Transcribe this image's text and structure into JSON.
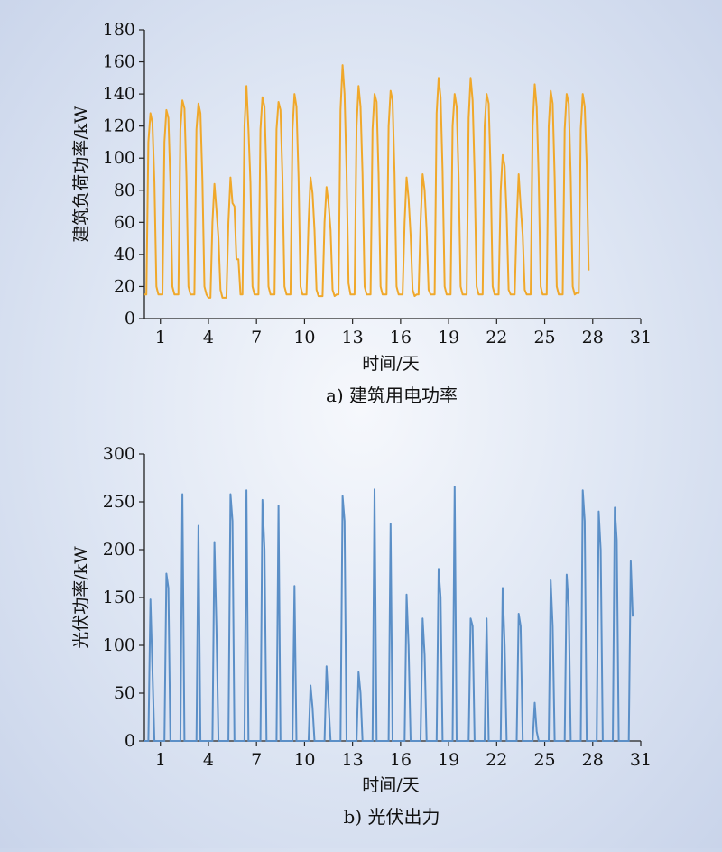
{
  "chart_data": [
    {
      "type": "line",
      "caption": "a) 建筑用电功率",
      "xlabel": "时间/天",
      "ylabel": "建筑负荷功率/kW",
      "xlim": [
        0,
        31
      ],
      "ylim": [
        0,
        180
      ],
      "xticks": [
        1,
        4,
        7,
        10,
        13,
        16,
        19,
        22,
        25,
        28,
        31
      ],
      "yticks": [
        0,
        20,
        40,
        60,
        80,
        100,
        120,
        140,
        160,
        180
      ],
      "color": "#f0a82a",
      "series": [
        {
          "x_start_day": 0,
          "points_per_day": 8,
          "values": [
            15,
            15,
            110,
            128,
            122,
            85,
            20,
            15,
            15,
            15,
            110,
            130,
            125,
            85,
            20,
            15,
            15,
            15,
            118,
            136,
            131,
            88,
            20,
            15,
            15,
            15,
            118,
            134,
            128,
            86,
            20,
            15,
            13,
            13,
            60,
            84,
            68,
            50,
            18,
            13,
            13,
            13,
            60,
            88,
            72,
            70,
            37,
            37,
            15,
            15,
            120,
            145,
            118,
            85,
            20,
            15,
            15,
            15,
            118,
            138,
            132,
            88,
            20,
            15,
            15,
            15,
            118,
            135,
            130,
            88,
            20,
            15,
            15,
            15,
            118,
            140,
            132,
            88,
            20,
            15,
            15,
            15,
            60,
            88,
            78,
            55,
            18,
            14,
            14,
            14,
            60,
            82,
            72,
            55,
            18,
            14,
            15,
            15,
            130,
            158,
            140,
            92,
            22,
            15,
            15,
            15,
            120,
            145,
            132,
            90,
            20,
            15,
            15,
            15,
            118,
            140,
            135,
            90,
            20,
            15,
            15,
            15,
            120,
            142,
            136,
            90,
            20,
            15,
            15,
            15,
            60,
            88,
            75,
            52,
            18,
            14,
            15,
            15,
            60,
            90,
            80,
            55,
            18,
            15,
            15,
            15,
            128,
            150,
            138,
            92,
            20,
            15,
            15,
            15,
            120,
            140,
            132,
            88,
            20,
            15,
            15,
            15,
            125,
            150,
            136,
            90,
            20,
            15,
            15,
            15,
            120,
            140,
            134,
            90,
            20,
            15,
            15,
            15,
            80,
            102,
            95,
            65,
            18,
            15,
            15,
            15,
            60,
            90,
            70,
            52,
            18,
            15,
            15,
            15,
            120,
            146,
            132,
            88,
            20,
            15,
            15,
            15,
            120,
            142,
            134,
            88,
            20,
            15,
            15,
            15,
            118,
            140,
            134,
            88,
            20,
            15,
            16,
            16,
            118,
            140,
            132,
            96,
            30
          ]
        }
      ]
    },
    {
      "type": "line",
      "caption": "b) 光伏出力",
      "xlabel": "时间/天",
      "ylabel": "光伏功率/kW",
      "xlim": [
        0,
        31
      ],
      "ylim": [
        0,
        300
      ],
      "xticks": [
        1,
        4,
        7,
        10,
        13,
        16,
        19,
        22,
        25,
        28,
        31
      ],
      "yticks": [
        0,
        50,
        100,
        150,
        200,
        250,
        300
      ],
      "color": "#5b8fc7",
      "series": [
        {
          "x_start_day": 0,
          "points_per_day": 8,
          "values": [
            0,
            0,
            0,
            148,
            75,
            0,
            0,
            0,
            0,
            0,
            0,
            175,
            160,
            0,
            0,
            0,
            0,
            0,
            0,
            258,
            0,
            0,
            0,
            0,
            0,
            0,
            0,
            225,
            0,
            0,
            0,
            0,
            0,
            0,
            0,
            208,
            120,
            0,
            0,
            0,
            0,
            0,
            0,
            258,
            230,
            0,
            0,
            0,
            0,
            0,
            0,
            262,
            0,
            0,
            0,
            0,
            0,
            0,
            0,
            252,
            200,
            0,
            0,
            0,
            0,
            0,
            0,
            246,
            0,
            0,
            0,
            0,
            0,
            0,
            0,
            162,
            0,
            0,
            0,
            0,
            0,
            0,
            0,
            58,
            35,
            0,
            0,
            0,
            0,
            0,
            0,
            78,
            40,
            0,
            0,
            0,
            0,
            0,
            0,
            256,
            230,
            0,
            0,
            0,
            0,
            0,
            0,
            72,
            50,
            0,
            0,
            0,
            0,
            0,
            0,
            263,
            0,
            0,
            0,
            0,
            0,
            0,
            0,
            227,
            0,
            0,
            0,
            0,
            0,
            0,
            0,
            153,
            100,
            0,
            0,
            0,
            0,
            0,
            0,
            128,
            90,
            0,
            0,
            0,
            0,
            0,
            0,
            180,
            150,
            0,
            0,
            0,
            0,
            0,
            0,
            266,
            0,
            0,
            0,
            0,
            0,
            0,
            0,
            128,
            120,
            0,
            0,
            0,
            0,
            0,
            0,
            128,
            0,
            0,
            0,
            0,
            0,
            0,
            0,
            160,
            100,
            0,
            0,
            0,
            0,
            0,
            0,
            133,
            120,
            0,
            0,
            0,
            0,
            0,
            0,
            40,
            10,
            0,
            0,
            0,
            0,
            0,
            0,
            168,
            120,
            0,
            0,
            0,
            0,
            0,
            0,
            174,
            140,
            0,
            0,
            0,
            0,
            0,
            0,
            262,
            230,
            0,
            0,
            0,
            0,
            0,
            0,
            240,
            200,
            0,
            0,
            0,
            0,
            0,
            0,
            244,
            210,
            0,
            0,
            0,
            0,
            0,
            0,
            188,
            130
          ]
        }
      ]
    }
  ]
}
